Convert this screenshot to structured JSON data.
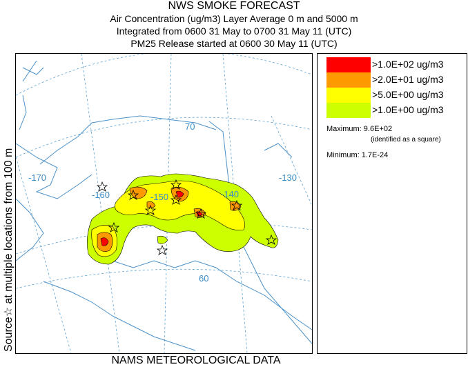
{
  "title": {
    "line1": "NWS SMOKE FORECAST",
    "line2": "Air Concentration (ug/m3) Layer Average    0 m and  5000 m",
    "line3": "Integrated from 0600 31 May to 0700 31 May 11 (UTC)",
    "line4": "PM25 Release started at 0600 30 May 11 (UTC)"
  },
  "side_label": "Source☆ at multiple locations from  100 m",
  "footer": "NAMS METEOROLOGICAL DATA",
  "map": {
    "lon_labels": [
      "-170",
      "-160",
      "-150",
      "-140",
      "-130"
    ],
    "lat_labels": [
      "70",
      "60"
    ],
    "colors": {
      "coast": "#4a90c8",
      "grid": "#5aa0d0",
      "contour": "#000000"
    }
  },
  "legend": {
    "items": [
      {
        "label": ">1.0E+02 ug/m3",
        "color": "#ff0000"
      },
      {
        "label": ">2.0E+01 ug/m3",
        "color": "#ff9900"
      },
      {
        "label": ">5.0E+00 ug/m3",
        "color": "#ffff00"
      },
      {
        "label": ">1.0E+00 ug/m3",
        "color": "#ccff00"
      }
    ],
    "maximum_label": "Maximum: 9.6E+02",
    "maximum_note": "(identified as a square)",
    "minimum_label": "Minimum: 1.7E-24"
  }
}
